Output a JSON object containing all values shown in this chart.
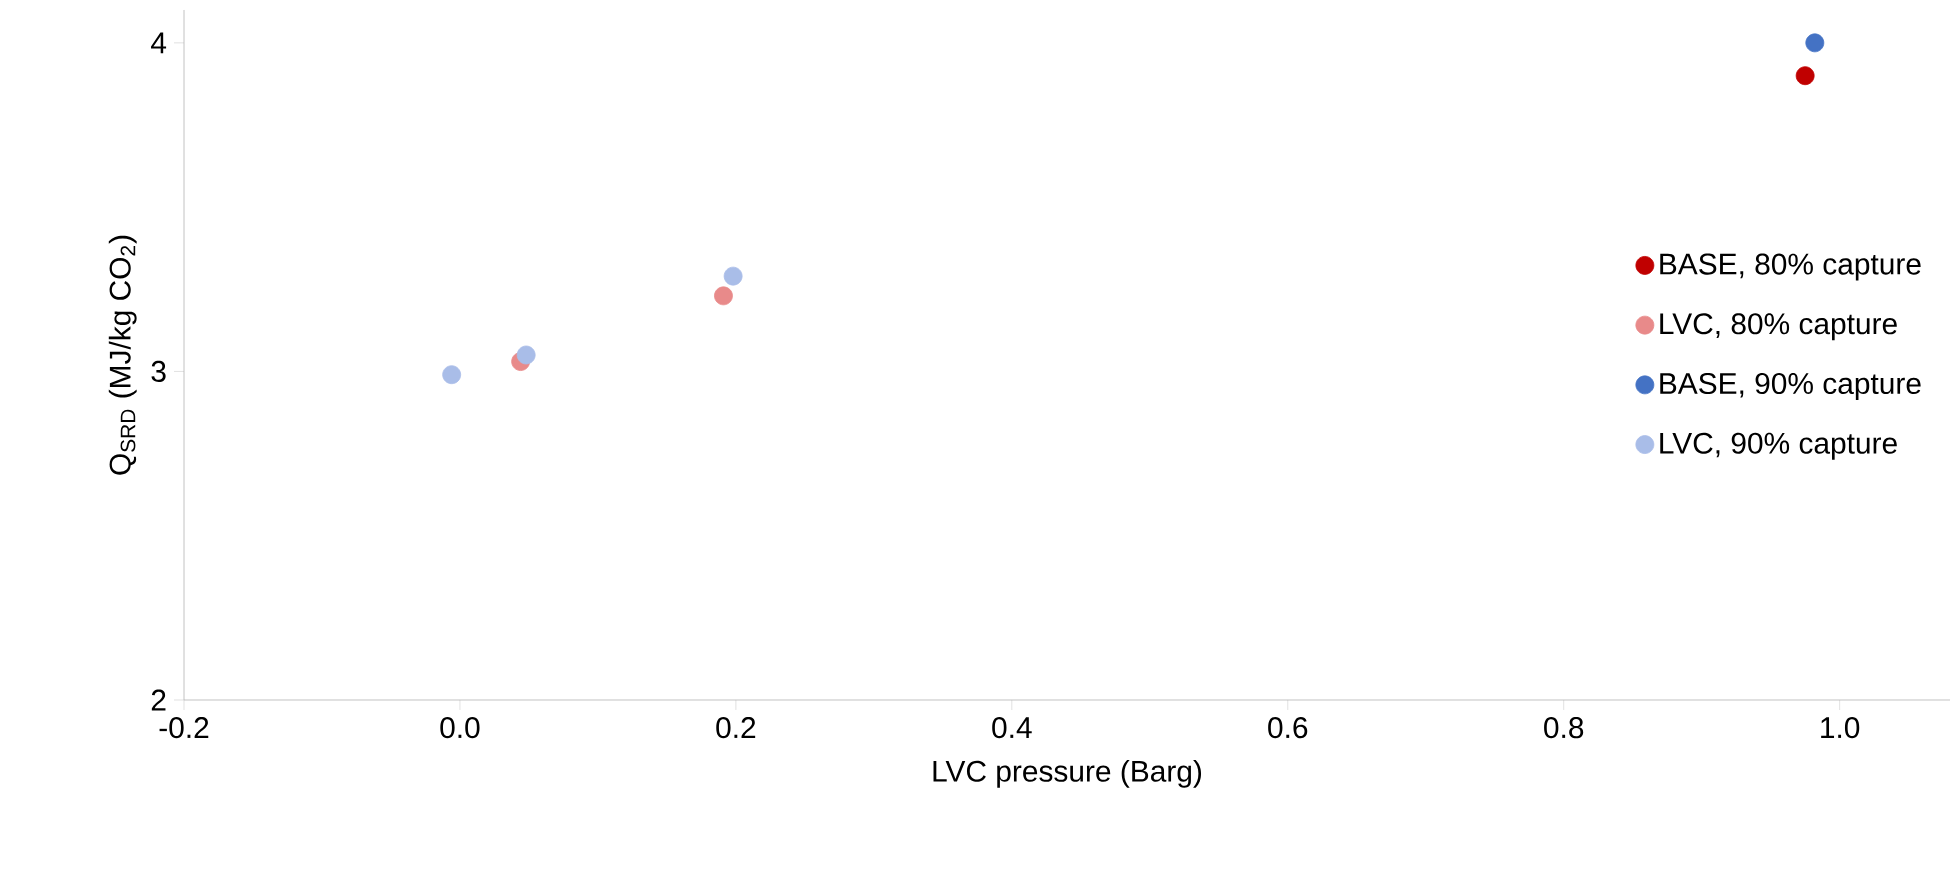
{
  "chart_data": {
    "type": "scatter",
    "xlabel": "LVC pressure (Barg)",
    "ylabel": "Q$_{SRD}$ (MJ/kg CO$_{2}$)",
    "xlim": [
      -0.2,
      1.08
    ],
    "ylim": [
      2,
      4.1
    ],
    "xticks": [
      {
        "value": -0.2,
        "label": "-0.2"
      },
      {
        "value": 0,
        "label": "0.0"
      },
      {
        "value": 0.2,
        "label": "0.2"
      },
      {
        "value": 0.4,
        "label": "0.4"
      },
      {
        "value": 0.6,
        "label": "0.6"
      },
      {
        "value": 0.8,
        "label": "0.8"
      },
      {
        "value": 1,
        "label": "1.0"
      }
    ],
    "yticks": [
      2,
      3,
      4
    ],
    "grid": false,
    "legend": "right",
    "marker": "circle",
    "series": [
      {
        "name": "BASE, 80% capture",
        "color": "#c00000",
        "x": [
          0.975
        ],
        "values": [
          3.9
        ]
      },
      {
        "name": "LVC, 80% capture",
        "color": "#e88a8a",
        "x": [
          0.044,
          0.191
        ],
        "values": [
          3.03,
          3.23
        ]
      },
      {
        "name": "BASE, 90% capture",
        "color": "#4472c4",
        "x": [
          0.982
        ],
        "values": [
          4.0
        ]
      },
      {
        "name": "LVC, 90% capture",
        "color": "#a9bde8",
        "x": [
          -0.006,
          0.048,
          0.198
        ],
        "values": [
          2.99,
          3.05,
          3.29
        ]
      }
    ]
  }
}
